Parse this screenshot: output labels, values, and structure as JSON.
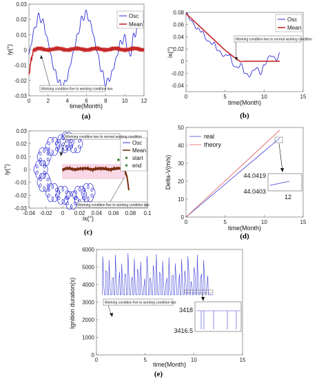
{
  "chart_data": [
    {
      "id": "a",
      "type": "line",
      "panel_label": "(a)",
      "xlabel": "time(Month)",
      "ylabel": "iy(°)",
      "xlim": [
        0,
        12
      ],
      "ylim": [
        -0.03,
        0.03
      ],
      "xticks": [
        "0",
        "2",
        "4",
        "6",
        "8",
        "10",
        "12"
      ],
      "yticks": [
        "-0.03",
        "-0.02",
        "-0.01",
        "0",
        "0.01",
        "0.02",
        "0.03"
      ],
      "legend": {
        "position": "top-right",
        "entries": [
          "Osc",
          "Mean"
        ]
      },
      "series": [
        {
          "name": "Osc",
          "color": "#2b2bd6",
          "x": [
            0,
            0.5,
            1,
            1.5,
            2,
            2.5,
            3,
            3.5,
            4,
            4.5,
            5,
            5.5,
            6,
            6.5,
            7,
            7.5,
            8,
            8.5,
            9,
            9.5,
            10,
            10.5,
            11,
            11.5,
            12
          ],
          "y": [
            -0.003,
            0.012,
            0.022,
            0.018,
            0.005,
            -0.01,
            -0.019,
            -0.025,
            -0.018,
            -0.005,
            0.008,
            0.02,
            0.024,
            0.016,
            0.002,
            -0.012,
            -0.022,
            -0.018,
            -0.008,
            0.004,
            0.008,
            -0.004,
            0.01,
            0.018,
            0.02
          ]
        },
        {
          "name": "Mean",
          "color": "#c62828",
          "x": [
            0,
            0.25,
            0.5,
            1,
            2,
            3,
            4,
            5,
            6,
            7,
            8,
            9,
            10,
            11,
            12
          ],
          "y": [
            -0.016,
            -0.006,
            0,
            0.001,
            0,
            0.001,
            0,
            0.001,
            0,
            0.001,
            0,
            0.001,
            0,
            0.001,
            0
          ]
        }
      ],
      "annotation": "Working condition five to working condition two"
    },
    {
      "id": "b",
      "type": "line",
      "panel_label": "(b)",
      "xlabel": "time(Month)",
      "ylabel": "ix(°)",
      "xlim": [
        0,
        15
      ],
      "ylim": [
        -0.05,
        0.08
      ],
      "xticks": [
        "0",
        "5",
        "10",
        "15"
      ],
      "yticks": [
        "-0.04",
        "-0.02",
        "0",
        "0.02",
        "0.04",
        "0.06",
        "0.08"
      ],
      "legend": {
        "position": "top-right",
        "entries": [
          "Osc",
          "Mean"
        ]
      },
      "series": [
        {
          "name": "Osc",
          "color": "#2b2bd6",
          "x": [
            0,
            0.5,
            1,
            1.5,
            2,
            2.5,
            3,
            3.5,
            4,
            4.5,
            5,
            5.5,
            6,
            6.5,
            7,
            7.5,
            8,
            8.5,
            9,
            9.5,
            10,
            10.5,
            11,
            11.5,
            12
          ],
          "y": [
            0.078,
            0.07,
            0.06,
            0.052,
            0.05,
            0.038,
            0.03,
            0.03,
            0.02,
            0.012,
            0.008,
            0.012,
            -0.005,
            -0.012,
            -0.005,
            -0.018,
            -0.025,
            -0.018,
            -0.01,
            -0.02,
            -0.008,
            0.005,
            0.01,
            0.002,
            0.012
          ]
        },
        {
          "name": "Mean",
          "color": "#c62828",
          "x": [
            0,
            1,
            2,
            3,
            4,
            5,
            6,
            7,
            7.5,
            8,
            9,
            10,
            11,
            12
          ],
          "y": [
            0.078,
            0.066,
            0.054,
            0.042,
            0.03,
            0.018,
            0.008,
            -0.001,
            0,
            0,
            0,
            0,
            0,
            0
          ]
        }
      ],
      "annotation": "Working condition two to normal working condition"
    },
    {
      "id": "c",
      "type": "line",
      "panel_label": "(c)",
      "xlabel": "ix(°)",
      "ylabel": "iy(°)",
      "xlim": [
        -0.04,
        0.1
      ],
      "ylim": [
        -0.03,
        0.03
      ],
      "xticks": [
        "-0.04",
        "-0.02",
        "0",
        "0.02",
        "0.04",
        "0.06",
        "0.08",
        "0.1"
      ],
      "yticks": [
        "-0.03",
        "-0.02",
        "-0.01",
        "0",
        "0.01",
        "0.02",
        "0.03"
      ],
      "legend": {
        "position": "top-right",
        "entries": [
          "Osc",
          "Mean",
          "start",
          "end"
        ]
      },
      "series": [
        {
          "name": "Mean",
          "color": "#7a2e0e",
          "x": [
            0.078,
            0.076,
            0.073,
            0.066,
            0.055,
            0.045,
            0.035,
            0.025,
            0.015,
            0.005,
            0
          ],
          "y": [
            -0.016,
            -0.006,
            0,
            0.001,
            0,
            0.001,
            0,
            0.001,
            0,
            0.001,
            0
          ]
        }
      ],
      "annotations": [
        "Working condition two to normal working condition",
        "Working condition five to working condition two"
      ]
    },
    {
      "id": "d",
      "type": "line",
      "panel_label": "(d)",
      "xlabel": "time(Month)",
      "ylabel": "Delta-V(m/s)",
      "xlim": [
        0,
        15
      ],
      "ylim": [
        0,
        50
      ],
      "xticks": [
        "0",
        "5",
        "10",
        "15"
      ],
      "yticks": [
        "0",
        "10",
        "20",
        "30",
        "40",
        "50"
      ],
      "legend": {
        "position": "top-left",
        "entries": [
          "real",
          "theory"
        ]
      },
      "series": [
        {
          "name": "real",
          "color": "#3a3ad8",
          "x": [
            0,
            12
          ],
          "y": [
            0,
            44.04
          ]
        },
        {
          "name": "theory",
          "color": "#e05050",
          "x": [
            0,
            12
          ],
          "y": [
            0,
            48.5
          ]
        }
      ],
      "inset": {
        "yticks": [
          "44.0419",
          "44.0403"
        ],
        "xtick": "12"
      }
    },
    {
      "id": "e",
      "type": "line",
      "panel_label": "(e)",
      "xlabel": "time(Month)",
      "ylabel": "Ignition duration(s)",
      "xlim": [
        0,
        15
      ],
      "ylim": [
        0,
        6000
      ],
      "xticks": [
        "0",
        "5",
        "10",
        "15"
      ],
      "yticks": [
        "0",
        "1000",
        "2000",
        "3000",
        "4000",
        "5000",
        "6000"
      ],
      "series": [
        {
          "name": "",
          "color": "#3a3ad8",
          "base": 3418,
          "peaks": [
            5600,
            4800,
            5400,
            4300,
            5700,
            3900,
            5200,
            4600,
            5800,
            4100,
            5500,
            4900,
            5300,
            3800,
            5650,
            4400,
            5100,
            5750,
            4700,
            5350,
            4000,
            5550,
            4500,
            5200,
            3900,
            5450,
            4800,
            5600,
            4200,
            5000,
            5700,
            4300,
            5400,
            3800
          ]
        }
      ],
      "inset": {
        "yticks": [
          "3418",
          "3416.5"
        ]
      },
      "annotation": "Working condition five to working condition two"
    }
  ]
}
